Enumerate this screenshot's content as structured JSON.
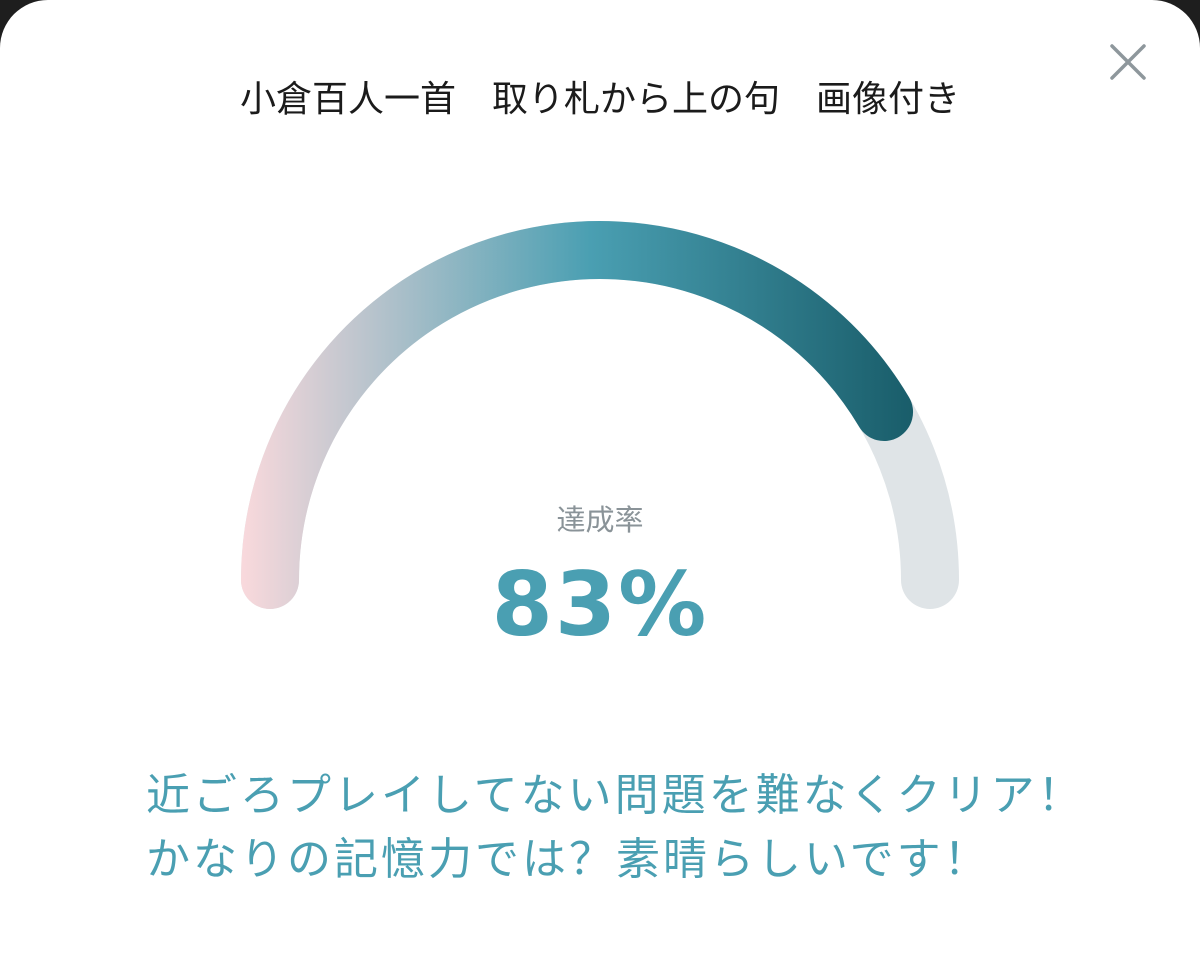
{
  "dialog": {
    "title": "小倉百人一首　取り札から上の句　画像付き",
    "close_icon": "close-icon"
  },
  "gauge": {
    "label": "達成率",
    "value_text": "83%",
    "progress_percent": 83,
    "colors": {
      "gradient_start": "#f9d9dc",
      "gradient_mid": "#4a9fb2",
      "gradient_end": "#195d6a",
      "track": "#dfe4e7"
    }
  },
  "message": {
    "lines": [
      "近ごろプレイしてない問題を難なくクリア！",
      "かなりの記憶力では？素晴らしいです！"
    ]
  }
}
